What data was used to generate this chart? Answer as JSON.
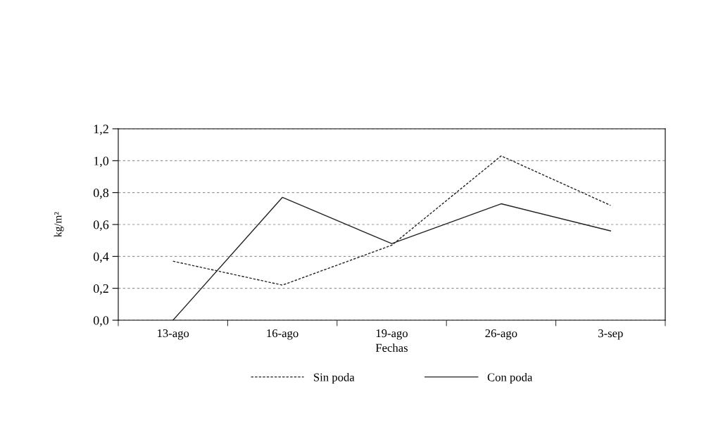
{
  "chart_data": {
    "type": "line",
    "xlabel": "Fechas",
    "ylabel": "kg/m²",
    "categories": [
      "13-ago",
      "16-ago",
      "19-ago",
      "26-ago",
      "3-sep"
    ],
    "series": [
      {
        "name": "Sin poda",
        "color": "#222222",
        "line_style": "dashed",
        "values": [
          0.37,
          0.22,
          0.47,
          1.03,
          0.72
        ]
      },
      {
        "name": "Con poda",
        "color": "#222222",
        "line_style": "solid",
        "values": [
          0.0,
          0.77,
          0.48,
          0.73,
          0.56
        ]
      }
    ],
    "ylim": [
      0,
      1.2
    ],
    "yticks": [
      {
        "value": 0,
        "label": "0,0"
      },
      {
        "value": 0.2,
        "label": "0,2"
      },
      {
        "value": 0.4,
        "label": "0,4"
      },
      {
        "value": 0.6,
        "label": "0,6"
      },
      {
        "value": 0.8,
        "label": "0,8"
      },
      {
        "value": 1.0,
        "label": "1,0"
      },
      {
        "value": 1.2,
        "label": "1,2"
      }
    ],
    "grid": "y",
    "legend": "bottom",
    "marker": "none"
  }
}
